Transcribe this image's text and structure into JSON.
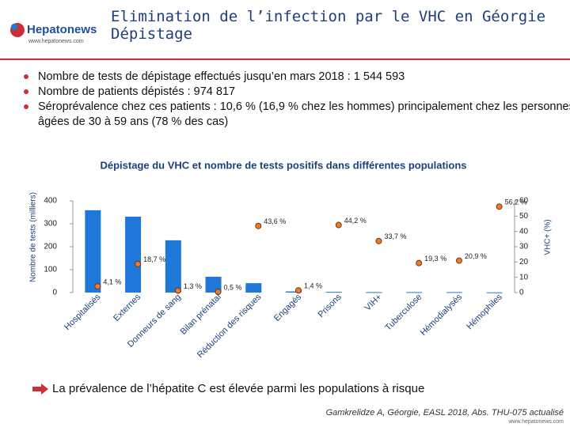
{
  "header": {
    "logo": "Hepatonews",
    "logo_url": "www.hepatonews.com",
    "title": [
      "Elimination de l’infection par le VHC en Géorgie",
      "Dépistage"
    ]
  },
  "bullets": [
    "Nombre de tests de dépistage effectués jusqu’en mars 2018 : 1 544 593",
    "Nombre de patients dépistés : 974 817",
    "Séroprévalence chez ces patients : 10,6 % (16,9 % chez les hommes) principalement chez les personnes âgées de 30 à 59 ans (78 % des cas)"
  ],
  "chart_data": {
    "type": "bar",
    "title": "Dépistage du VHC et nombre de tests positifs dans différentes populations",
    "y_label": "Nombre de tests (milliers)",
    "y2_label": "VHC+ (%)",
    "categories": [
      "Hospitalisés",
      "Externes",
      "Donneurs de sang",
      "Bilan prénatal",
      "Réduction des risques",
      "Engagés",
      "Prisons",
      "VIH+",
      "Tuberculose",
      "Hémodialysés",
      "Hémophiles"
    ],
    "series": [
      {
        "name": "Nombre de tests",
        "color": "#1f77d8",
        "values": [
          359,
          331,
          228,
          69,
          41,
          5,
          3,
          2,
          2,
          2,
          1
        ]
      },
      {
        "name": "VHC+",
        "color": "#f07a2c",
        "axis": "y2",
        "type": "scatter",
        "values": [
          4.1,
          18.7,
          1.3,
          0.5,
          43.6,
          1.4,
          44.2,
          33.7,
          19.3,
          20.9,
          56.2
        ],
        "value_labels": [
          "4,1 %",
          "18,7 %",
          "1,3 %",
          "0,5 %",
          "43,6 %",
          "1,4 %",
          "44,2 %",
          "33,7 %",
          "19,3 %",
          "20,9 %",
          "56,2 %"
        ]
      }
    ],
    "ylim": [
      0,
      400
    ],
    "yticks": [
      0,
      100,
      200,
      300,
      400
    ],
    "y2lim": [
      0,
      60
    ],
    "y2ticks": [
      0,
      10,
      20,
      30,
      40,
      50,
      60
    ]
  },
  "conclusion": "La prévalence de l’hépatite C est élevée parmi les populations à risque",
  "citation": "Gamkrelidze A, Géorgie, EASL 2018, Abs. THU-075 actualisé",
  "footer": "www.hepatonews.com"
}
